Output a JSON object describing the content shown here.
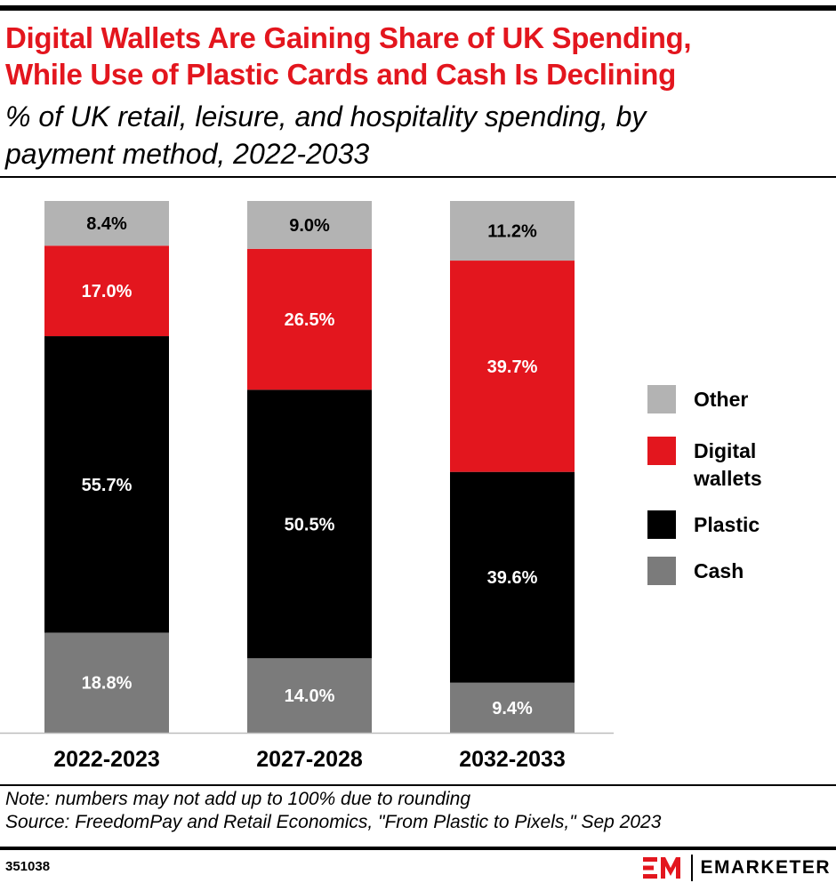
{
  "header": {
    "title_line1": "Digital Wallets Are Gaining Share of UK Spending,",
    "title_line2": "While Use of Plastic Cards and Cash Is Declining",
    "subtitle_line1": "% of UK retail, leisure, and hospitality spending, by",
    "subtitle_line2": "payment method, 2022-2033"
  },
  "colors": {
    "title": "#e3161e",
    "Cash": "#7b7b7b",
    "Plastic": "#000000",
    "Digital wallets": "#e3161e",
    "Other": "#b3b3b3"
  },
  "chart_data": {
    "type": "bar",
    "stacked": true,
    "categories": [
      "2022-2023",
      "2027-2028",
      "2032-2033"
    ],
    "series": [
      {
        "name": "Cash",
        "values": [
          18.8,
          14.0,
          9.4
        ],
        "labels": [
          "18.8%",
          "14.0%",
          "9.4%"
        ]
      },
      {
        "name": "Plastic",
        "values": [
          55.7,
          50.5,
          39.6
        ],
        "labels": [
          "55.7%",
          "50.5%",
          "39.6%"
        ]
      },
      {
        "name": "Digital wallets",
        "values": [
          17.0,
          26.5,
          39.7
        ],
        "labels": [
          "17.0%",
          "26.5%",
          "39.7%"
        ]
      },
      {
        "name": "Other",
        "values": [
          8.4,
          9.0,
          11.2
        ],
        "labels": [
          "8.4%",
          "9.0%",
          "11.2%"
        ]
      }
    ],
    "legend": [
      {
        "name": "Other",
        "lines": [
          "Other"
        ]
      },
      {
        "name": "Digital wallets",
        "lines": [
          "Digital",
          "wallets"
        ]
      },
      {
        "name": "Plastic",
        "lines": [
          "Plastic"
        ]
      },
      {
        "name": "Cash",
        "lines": [
          "Cash"
        ]
      }
    ],
    "legend_position": "right",
    "grid": false
  },
  "footer": {
    "note": "Note: numbers may not add up to 100% due to rounding",
    "source": "Source: FreedomPay and Retail Economics, \"From Plastic to Pixels,\" Sep 2023",
    "chart_id": "351038",
    "brand": "EMARKETER"
  }
}
